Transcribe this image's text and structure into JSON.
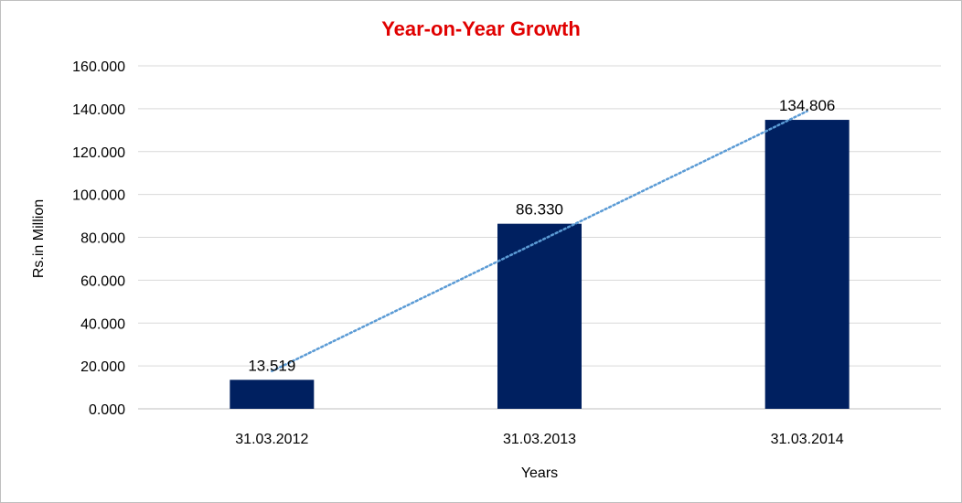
{
  "chart_data": {
    "type": "bar",
    "title": "Year-on-Year Growth",
    "xlabel": "Years",
    "ylabel": "Rs.in Million",
    "categories": [
      "31.03.2012",
      "31.03.2013",
      "31.03.2014"
    ],
    "values": [
      13.519,
      86.33,
      134.806
    ],
    "value_labels": [
      "13.519",
      "86.330",
      "134.806"
    ],
    "ylim": [
      0,
      160
    ],
    "y_ticks": [
      "0.000",
      "20.000",
      "40.000",
      "60.000",
      "80.000",
      "100.000",
      "120.000",
      "140.000",
      "160.000"
    ],
    "grid": true,
    "trendline": "linear, dotted",
    "colors": {
      "bar": "#002060",
      "title": "#e00000",
      "trendline": "#5b9bd5",
      "grid": "#d9d9d9"
    }
  }
}
